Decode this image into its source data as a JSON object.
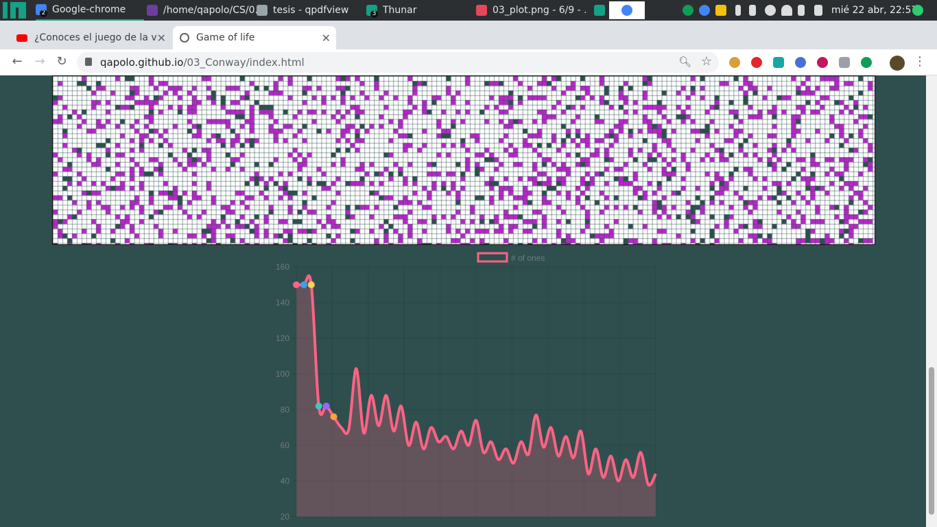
{
  "os_panel": {
    "tasks": [
      {
        "label": "Google-chrome",
        "badge": "2",
        "active": true
      },
      {
        "label": "/home/qapolo/CS/0...",
        "badge": "",
        "active": false
      },
      {
        "label": "tesis - qpdfview",
        "badge": "",
        "active": false
      },
      {
        "label": "Thunar",
        "badge": "3",
        "active": false
      },
      {
        "label": "03_plot.png - 6/9 - ...",
        "badge": "",
        "active": false
      }
    ],
    "clock": "mié 22 abr, 22:57"
  },
  "browser": {
    "tabs": [
      {
        "title": "¿Conoces el juego de la vida de Conway?",
        "favicon": "youtube-icon"
      },
      {
        "title": "Game of life",
        "favicon": "globe-icon"
      }
    ],
    "url_host": "qapolo.github.io",
    "url_path": "/03_Conway/index.html"
  },
  "colors": {
    "page_bg": "#2f4f4f",
    "cell_alive_a": "#b627c8",
    "cell_alive_b": "#2f4f4f",
    "line": "#ff6384",
    "fill": "rgba(255,99,132,0.25)"
  },
  "chart_data": {
    "type": "line",
    "legend": "# of ones",
    "legend_position": "top",
    "ylim": [
      20,
      160
    ],
    "yticks": [
      20,
      40,
      60,
      80,
      100,
      120,
      140,
      160
    ],
    "grid": true,
    "series": [
      {
        "name": "# of ones",
        "values": [
          150,
          150,
          150,
          82,
          82,
          76,
          70,
          69,
          103,
          67,
          88,
          71,
          88,
          68,
          82,
          60,
          73,
          58,
          70,
          62,
          65,
          58,
          68,
          60,
          74,
          56,
          62,
          52,
          58,
          50,
          62,
          55,
          77,
          59,
          70,
          54,
          65,
          53,
          68,
          44,
          58,
          42,
          54,
          40,
          52,
          42,
          56,
          38,
          44
        ]
      }
    ]
  }
}
